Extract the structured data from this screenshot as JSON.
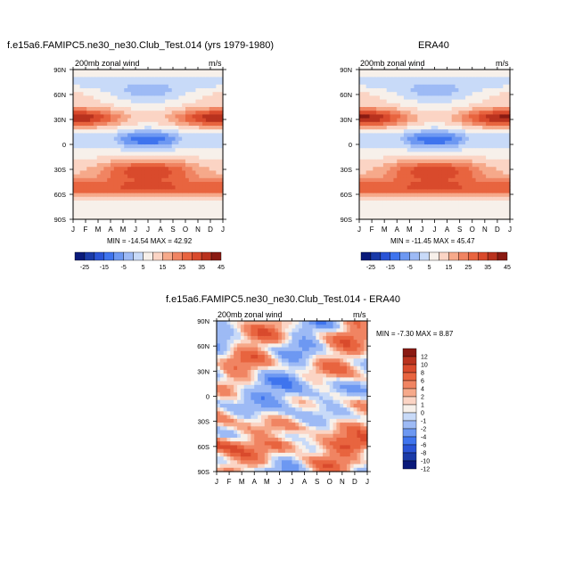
{
  "chart_data": [
    {
      "type": "heatmap",
      "title": "f.e15a6.FAMIPC5.ne30_ne30.Club_Test.014 (yrs 1979-1980)",
      "subtitle_left": "200mb zonal wind",
      "subtitle_right": "m/s",
      "x_ticks": [
        "J",
        "F",
        "M",
        "A",
        "M",
        "J",
        "J",
        "A",
        "S",
        "O",
        "N",
        "D",
        "J"
      ],
      "y_ticks": [
        "90N",
        "60N",
        "30N",
        "0",
        "30S",
        "60S",
        "90S"
      ],
      "minmax_text": "MIN = -14.54  MAX =  42.92",
      "colorbar_labels": [
        "-25",
        "-15",
        "-5",
        "5",
        "15",
        "25",
        "35",
        "45"
      ]
    },
    {
      "type": "heatmap",
      "title": "ERA40",
      "subtitle_left": "200mb zonal wind",
      "subtitle_right": "m/s",
      "x_ticks": [
        "J",
        "F",
        "M",
        "A",
        "M",
        "J",
        "J",
        "A",
        "S",
        "O",
        "N",
        "D",
        "J"
      ],
      "y_ticks": [
        "90N",
        "60N",
        "30N",
        "0",
        "30S",
        "60S",
        "90S"
      ],
      "minmax_text": "MIN = -11.45  MAX =  45.47",
      "colorbar_labels": [
        "-25",
        "-15",
        "-5",
        "5",
        "15",
        "25",
        "35",
        "45"
      ]
    },
    {
      "type": "heatmap",
      "title": "f.e15a6.FAMIPC5.ne30_ne30.Club_Test.014 - ERA40",
      "subtitle_left": "200mb zonal wind",
      "subtitle_right": "m/s",
      "x_ticks": [
        "J",
        "F",
        "M",
        "A",
        "M",
        "J",
        "J",
        "A",
        "S",
        "O",
        "N",
        "D",
        "J"
      ],
      "y_ticks": [
        "90N",
        "60N",
        "30N",
        "0",
        "30S",
        "60S",
        "90S"
      ],
      "minmax_text": "MIN =  -7.30  MAX =   8.87",
      "colorbar_labels": [
        "12",
        "10",
        "8",
        "6",
        "4",
        "2",
        "1",
        "0",
        "-1",
        "-2",
        "-4",
        "-6",
        "-8",
        "-10",
        "-12"
      ]
    }
  ],
  "colors": {
    "scale": [
      "#0a1a7a",
      "#1a3aa8",
      "#2a54d6",
      "#3f74ee",
      "#6d98f2",
      "#9dbaf5",
      "#c8daf8",
      "#f7f0ea",
      "#fbd4c4",
      "#f6a98a",
      "#f08462",
      "#e8643f",
      "#d94a2c",
      "#b9321e",
      "#8a1a12"
    ]
  }
}
